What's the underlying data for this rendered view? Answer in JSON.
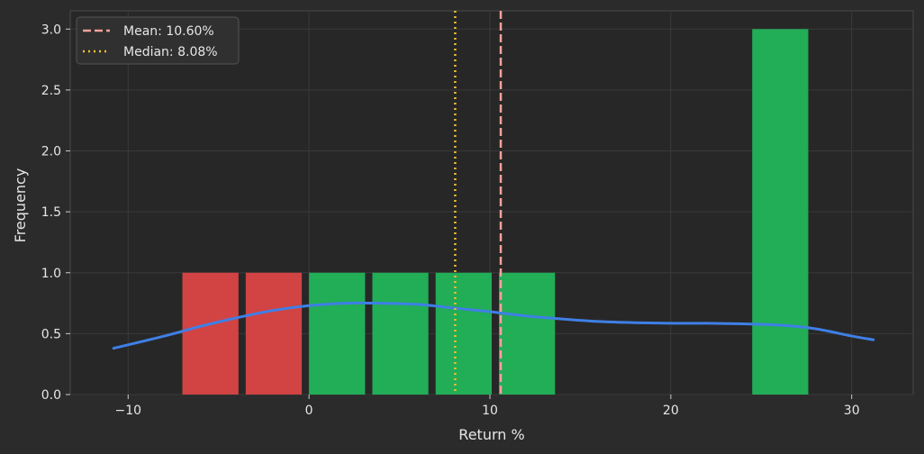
{
  "chart_data": {
    "type": "bar",
    "xlabel": "Return %",
    "ylabel": "Frequency",
    "xlim": [
      -13.2,
      33.4
    ],
    "ylim": [
      0,
      3.15
    ],
    "x_ticks": [
      -10,
      0,
      10,
      20,
      30
    ],
    "y_ticks": [
      0.0,
      0.5,
      1.0,
      1.5,
      2.0,
      2.5,
      3.0
    ],
    "x_tick_labels": [
      "−10",
      "0",
      "10",
      "20",
      "30"
    ],
    "y_tick_labels": [
      "0.0",
      "0.5",
      "1.0",
      "1.5",
      "2.0",
      "2.5",
      "3.0"
    ],
    "grid": true,
    "bins": [
      {
        "start": -7.0,
        "end": -3.9,
        "count": 1,
        "color": "#d24343"
      },
      {
        "start": -3.5,
        "end": -0.4,
        "count": 1,
        "color": "#d24343"
      },
      {
        "start": 0.0,
        "end": 3.1,
        "count": 1,
        "color": "#22ad57"
      },
      {
        "start": 3.5,
        "end": 6.6,
        "count": 1,
        "color": "#22ad57"
      },
      {
        "start": 7.0,
        "end": 10.1,
        "count": 1,
        "color": "#22ad57"
      },
      {
        "start": 10.5,
        "end": 13.6,
        "count": 1,
        "color": "#22ad57"
      },
      {
        "start": 24.5,
        "end": 27.6,
        "count": 3,
        "color": "#22ad57"
      }
    ],
    "kde": {
      "color": "#3f7fe6",
      "x": [
        -10.8,
        -8,
        -6,
        -4,
        -2,
        0,
        2,
        4,
        6,
        8,
        10,
        12,
        14,
        16,
        18,
        20,
        22,
        24,
        26,
        28,
        30,
        31.2
      ],
      "y": [
        0.38,
        0.48,
        0.56,
        0.63,
        0.69,
        0.73,
        0.75,
        0.75,
        0.74,
        0.71,
        0.68,
        0.645,
        0.62,
        0.6,
        0.59,
        0.585,
        0.585,
        0.58,
        0.57,
        0.54,
        0.48,
        0.45
      ]
    },
    "lines": [
      {
        "name": "Mean: 10.60%",
        "x": 10.6,
        "color": "#f4a29a",
        "style": "dashed"
      },
      {
        "name": "Median: 8.08%",
        "x": 8.08,
        "color": "#f2c12e",
        "style": "dotted"
      }
    ],
    "legend": "top-left"
  }
}
